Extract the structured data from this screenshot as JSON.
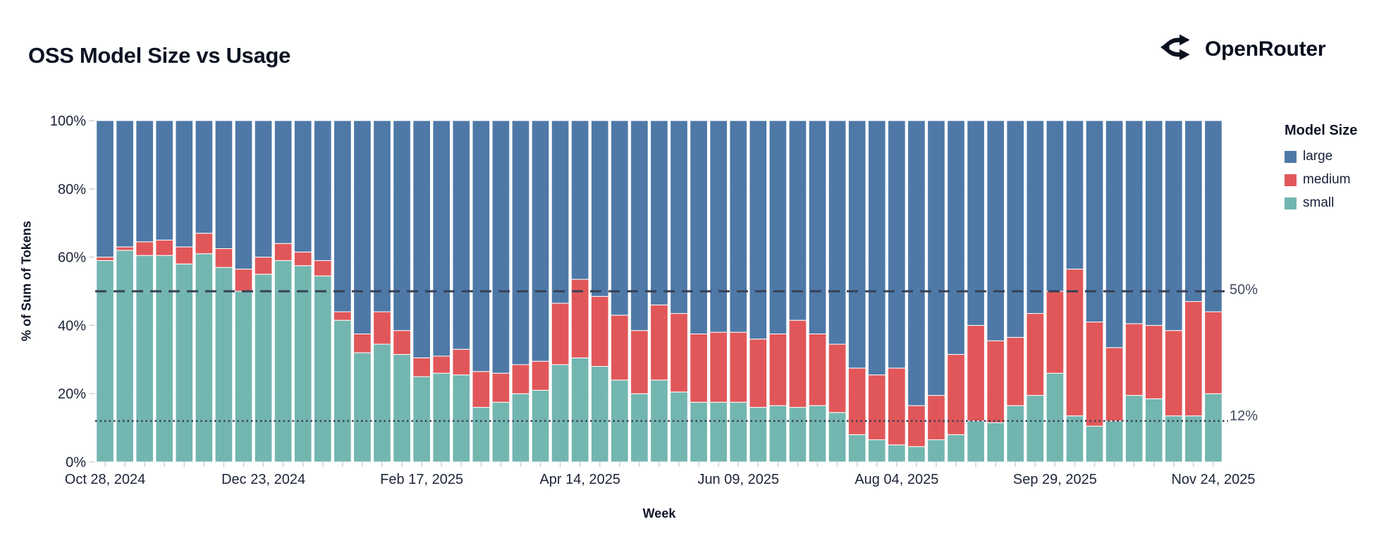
{
  "header": {
    "title": "OSS Model Size vs Usage",
    "brand": "OpenRouter"
  },
  "ui_colors": {
    "background": "#ffffff",
    "text": "#101a2e",
    "tick_text": "#1c2438",
    "grid": "#e6e9ef",
    "axis_tick": "#ccd2dd",
    "reference_line": "#364055",
    "reference_label": "#414b5f",
    "bar_outline": "#ffffff"
  },
  "chart_data": {
    "type": "bar",
    "stacked": true,
    "unit": "percent",
    "title": "OSS Model Size vs Usage",
    "xlabel": "Week",
    "ylabel": "% of Sum of Tokens",
    "ylim": [
      0,
      100
    ],
    "grid": "horizontal",
    "n_bars": 57,
    "y_tick_labels": [
      "0%",
      "20%",
      "40%",
      "60%",
      "80%",
      "100%"
    ],
    "x_ticks": [
      {
        "week_index": 0,
        "label": "Oct 28, 2024"
      },
      {
        "week_index": 8,
        "label": "Dec 23, 2024"
      },
      {
        "week_index": 16,
        "label": "Feb 17, 2025"
      },
      {
        "week_index": 24,
        "label": "Apr 14, 2025"
      },
      {
        "week_index": 32,
        "label": "Jun 09, 2025"
      },
      {
        "week_index": 40,
        "label": "Aug 04, 2025"
      },
      {
        "week_index": 48,
        "label": "Sep 29, 2025"
      },
      {
        "week_index": 56,
        "label": "Nov 24, 2025"
      }
    ],
    "legend": {
      "title": "Model Size",
      "position": "right",
      "entries": [
        {
          "label": "large",
          "color": "#4e79a7"
        },
        {
          "label": "medium",
          "color": "#e15759"
        },
        {
          "label": "small",
          "color": "#73b6b0"
        }
      ]
    },
    "reference_lines": [
      {
        "value": 50,
        "label": "50%",
        "style": "dashed"
      },
      {
        "value": 12,
        "label": "12%",
        "style": "dotted"
      }
    ],
    "series": [
      {
        "name": "small",
        "color": "#73b6b0",
        "values": [
          59,
          62,
          60.5,
          60.5,
          58,
          61,
          57,
          50,
          55,
          59,
          57.5,
          54.5,
          41.5,
          32,
          34.5,
          31.5,
          25,
          26,
          25.5,
          16,
          17.5,
          20,
          21,
          28.5,
          30.5,
          28,
          24,
          20,
          24,
          20.5,
          17.5,
          17.5,
          17.5,
          16,
          16.5,
          16,
          16.5,
          14.5,
          8,
          6.5,
          5,
          4.5,
          6.5,
          8,
          12,
          11.5,
          16.5,
          19.5,
          26,
          13.5,
          10.5,
          12,
          19.5,
          18.5,
          13.5,
          13.5,
          20
        ]
      },
      {
        "name": "medium",
        "color": "#e15759",
        "values": [
          1,
          1,
          4,
          4.5,
          5,
          6,
          5.5,
          6.5,
          5,
          5,
          4,
          4.5,
          2.5,
          5.5,
          9.5,
          7,
          5.5,
          5,
          7.5,
          10.5,
          8.5,
          8.5,
          8.5,
          18,
          23,
          20.5,
          19,
          18.5,
          22,
          23,
          20,
          20.5,
          20.5,
          20,
          21,
          25.5,
          21,
          20,
          19.5,
          19,
          22.5,
          12,
          13,
          23.5,
          28,
          24,
          20,
          24,
          24,
          43,
          30.5,
          21.5,
          21,
          21.5,
          25,
          33.5,
          24
        ]
      },
      {
        "name": "large",
        "color": "#4e79a7",
        "values": [
          40,
          37,
          35.5,
          35,
          37,
          33,
          37.5,
          43.5,
          40,
          36,
          38.5,
          41,
          56,
          62.5,
          56,
          61.5,
          69.5,
          69,
          67,
          73.5,
          74,
          71.5,
          70.5,
          53.5,
          46.5,
          51.5,
          57,
          61.5,
          54,
          56.5,
          62.5,
          62,
          62,
          64,
          62.5,
          58.5,
          62.5,
          65.5,
          72.5,
          74.5,
          72.5,
          83.5,
          80.5,
          68.5,
          60,
          64.5,
          63.5,
          56.5,
          50,
          43.5,
          59,
          66.5,
          59.5,
          60,
          61.5,
          53,
          56
        ]
      }
    ]
  }
}
